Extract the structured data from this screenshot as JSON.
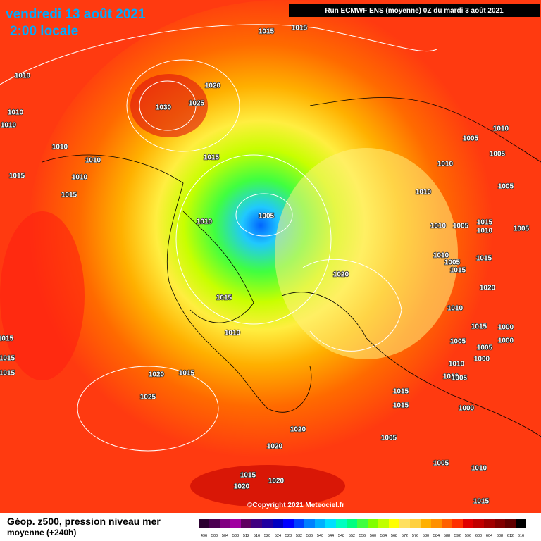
{
  "header": {
    "date": "vendredi 13 août 2021",
    "time": "2:00 locale",
    "run": "Run ECMWF ENS (moyenne) 0Z du mardi 3 août 2021"
  },
  "isobar_labels": [
    1015,
    1015,
    1010,
    1020,
    1030,
    1025,
    1010,
    1010,
    1010,
    1010,
    1005,
    1015,
    1010,
    1005,
    1010,
    1015,
    1010,
    1015,
    1010,
    1005,
    1005,
    1010,
    1010,
    1005,
    1015,
    1010,
    1005,
    1010,
    1005,
    1015,
    1015,
    1020,
    1020,
    1015,
    1010,
    1015,
    1000,
    1015,
    1010,
    1005,
    1000,
    1005,
    1015,
    1000,
    1010,
    1020,
    1015,
    1015,
    1010,
    1005,
    1025,
    1015,
    1015,
    1000,
    1020,
    1005,
    1020,
    1005,
    1010,
    1015,
    1020,
    1020,
    1015
  ],
  "footer": {
    "title": "Géop. z500, pression niveau mer",
    "subtitle": "moyenne  (+240h)",
    "copyright": "©Copyright 2021 Meteociel.fr"
  },
  "colorbar": {
    "values": [
      496,
      500,
      504,
      508,
      512,
      516,
      520,
      524,
      528,
      532,
      536,
      540,
      544,
      548,
      552,
      556,
      560,
      564,
      568,
      572,
      576,
      580,
      584,
      588,
      592,
      596,
      600,
      604,
      608,
      612,
      616
    ],
    "colors": [
      "#2b0030",
      "#4b0050",
      "#800080",
      "#a000a0",
      "#600060",
      "#400080",
      "#2000a0",
      "#0000c0",
      "#0000ff",
      "#0040ff",
      "#0080ff",
      "#00b0ff",
      "#00e0ff",
      "#00ffc0",
      "#00ff80",
      "#40ff40",
      "#80ff00",
      "#c0ff00",
      "#ffff00",
      "#ffe060",
      "#ffd040",
      "#ffb000",
      "#ff9000",
      "#ff6000",
      "#ff3000",
      "#e00000",
      "#c00000",
      "#a00000",
      "#800000",
      "#600000",
      "#000000"
    ]
  }
}
